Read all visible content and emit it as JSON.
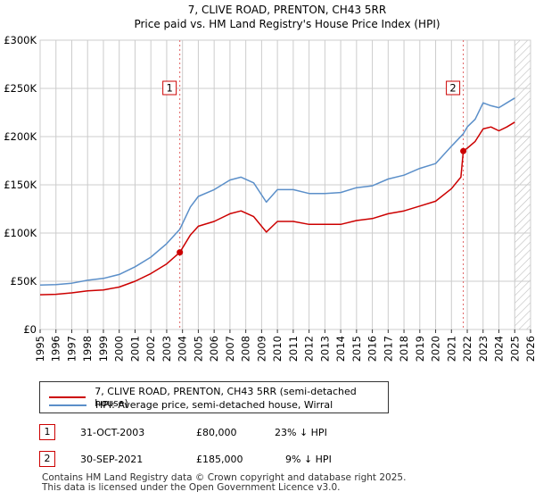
{
  "chart_data": {
    "type": "line",
    "title": "7, CLIVE ROAD, PRENTON, CH43 5RR",
    "subtitle": "Price paid vs. HM Land Registry's House Price Index (HPI)",
    "xlim": [
      1995,
      2026
    ],
    "ylim": [
      0,
      300000
    ],
    "x_ticks": [
      "1995",
      "1996",
      "1997",
      "1998",
      "1999",
      "2000",
      "2001",
      "2002",
      "2003",
      "2004",
      "2005",
      "2006",
      "2007",
      "2008",
      "2009",
      "2010",
      "2011",
      "2012",
      "2013",
      "2014",
      "2015",
      "2016",
      "2017",
      "2018",
      "2019",
      "2020",
      "2021",
      "2022",
      "2023",
      "2024",
      "2025",
      "2026"
    ],
    "y_ticks": [
      {
        "value": 0,
        "label": "£0"
      },
      {
        "value": 50000,
        "label": "£50K"
      },
      {
        "value": 100000,
        "label": "£100K"
      },
      {
        "value": 150000,
        "label": "£150K"
      },
      {
        "value": 200000,
        "label": "£200K"
      },
      {
        "value": 250000,
        "label": "£250K"
      },
      {
        "value": 300000,
        "label": "£300K"
      }
    ],
    "grid": true,
    "hatched_after": 2025.0,
    "series": [
      {
        "name": "7, CLIVE ROAD, PRENTON, CH43 5RR (semi-detached house)",
        "color": "#cc0000",
        "x": [
          1995,
          1996,
          1997,
          1998,
          1999,
          2000,
          2001,
          2002,
          2003,
          2003.83,
          2004.5,
          2005,
          2006,
          2007,
          2007.7,
          2008.5,
          2009.3,
          2010,
          2011,
          2012,
          2013,
          2014,
          2015,
          2016,
          2017,
          2018,
          2019,
          2020,
          2021,
          2021.6,
          2021.75,
          2022,
          2022.5,
          2023,
          2023.5,
          2024,
          2024.5,
          2025
        ],
        "y": [
          36000,
          36500,
          38000,
          40000,
          41000,
          44000,
          50000,
          58000,
          68000,
          80000,
          98000,
          107000,
          112000,
          120000,
          123000,
          117000,
          101000,
          112000,
          112000,
          109000,
          109000,
          109000,
          113000,
          115000,
          120000,
          123000,
          128000,
          133000,
          146000,
          158000,
          185000,
          188000,
          195000,
          208000,
          210000,
          206000,
          210000,
          215000
        ]
      },
      {
        "name": "HPI: Average price, semi-detached house, Wirral",
        "color": "#5b8fc9",
        "x": [
          1995,
          1996,
          1997,
          1998,
          1999,
          2000,
          2001,
          2002,
          2003,
          2003.83,
          2004.5,
          2005,
          2006,
          2007,
          2007.7,
          2008.5,
          2009.3,
          2010,
          2011,
          2012,
          2013,
          2014,
          2015,
          2016,
          2017,
          2018,
          2019,
          2020,
          2021,
          2021.75,
          2022,
          2022.5,
          2023,
          2023.5,
          2024,
          2024.5,
          2025
        ],
        "y": [
          46000,
          46500,
          48000,
          51000,
          53000,
          57000,
          65000,
          75000,
          89000,
          104000,
          127000,
          138000,
          145000,
          155000,
          158000,
          152000,
          132000,
          145000,
          145000,
          141000,
          141000,
          142000,
          147000,
          149000,
          156000,
          160000,
          167000,
          172000,
          190000,
          203000,
          210000,
          218000,
          235000,
          232000,
          230000,
          235000,
          240000
        ]
      }
    ],
    "annotations": [
      {
        "label": "1",
        "x": 2003.83,
        "y": 80000
      },
      {
        "label": "2",
        "x": 2021.75,
        "y": 185000
      }
    ]
  },
  "legend": {
    "property": "7, CLIVE ROAD, PRENTON, CH43 5RR (semi-detached house)",
    "hpi": "HPI: Average price, semi-detached house, Wirral"
  },
  "sales": [
    {
      "num": "1",
      "date": "31-OCT-2003",
      "price": "£80,000",
      "hpi": "23% ↓ HPI"
    },
    {
      "num": "2",
      "date": "30-SEP-2021",
      "price": "£185,000",
      "hpi": "9% ↓ HPI"
    }
  ],
  "footer": {
    "line1": "Contains HM Land Registry data © Crown copyright and database right 2025.",
    "line2": "This data is licensed under the Open Government Licence v3.0."
  }
}
